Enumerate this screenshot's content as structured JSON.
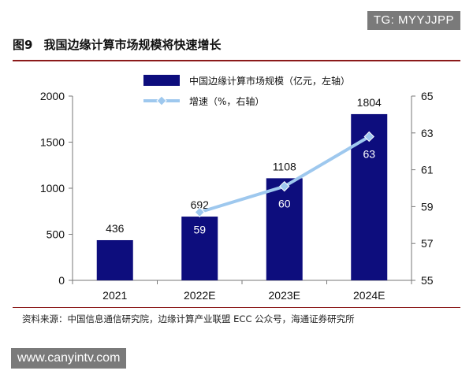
{
  "watermark_top": "TG: MYYJJPP",
  "watermark_bottom": "www.canyintv.com",
  "figure": {
    "number": "图9",
    "title": "我国边缘计算市场规模将快速增长",
    "source": "资料来源：中国信息通信研究院，边缘计算产业联盟 ECC 公众号，海通证券研究所"
  },
  "colors": {
    "bar": "#0d0d7d",
    "line": "#9ec8ee",
    "marker": "#9ec8ee",
    "rule": "#8b1a1a"
  },
  "chart_data": {
    "type": "bar",
    "categories": [
      "2021",
      "2022E",
      "2023E",
      "2024E"
    ],
    "series": [
      {
        "name": "中国边缘计算市场规模（亿元，左轴）",
        "type": "bar",
        "axis": "left",
        "values": [
          436,
          692,
          1108,
          1804
        ],
        "labels": [
          "436",
          "692",
          "1108",
          "1804"
        ]
      },
      {
        "name": "增速（%，右轴）",
        "type": "line",
        "axis": "right",
        "values": [
          null,
          58.7,
          60.1,
          62.8
        ],
        "labels": [
          "",
          "59",
          "60",
          "63"
        ]
      }
    ],
    "y_left": {
      "min": 0,
      "max": 2000,
      "ticks": [
        0,
        500,
        1000,
        1500,
        2000
      ]
    },
    "y_right": {
      "min": 55,
      "max": 65,
      "ticks": [
        55,
        57,
        59,
        61,
        63,
        65
      ]
    },
    "grid": false,
    "legend_position": "top"
  }
}
